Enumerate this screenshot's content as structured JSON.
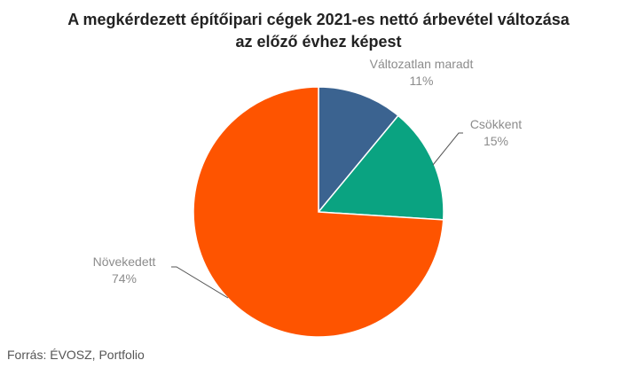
{
  "chart_data": {
    "type": "pie",
    "title_lines": [
      "A megkérdezett építőipari cégek 2021-es nettó árbevétel változása",
      "az előző évhez képest"
    ],
    "slices": [
      {
        "label": "Változatlan maradt",
        "value": 11,
        "value_label": "11%",
        "color": "#3b6390"
      },
      {
        "label": "Csökkent",
        "value": 15,
        "value_label": "15%",
        "color": "#0aa381"
      },
      {
        "label": "Növekedett",
        "value": 74,
        "value_label": "74%",
        "color": "#fe5400"
      }
    ],
    "start_angle_deg": 0,
    "direction": "clockwise"
  },
  "source": "Forrás: ÉVOSZ, Portfolio"
}
